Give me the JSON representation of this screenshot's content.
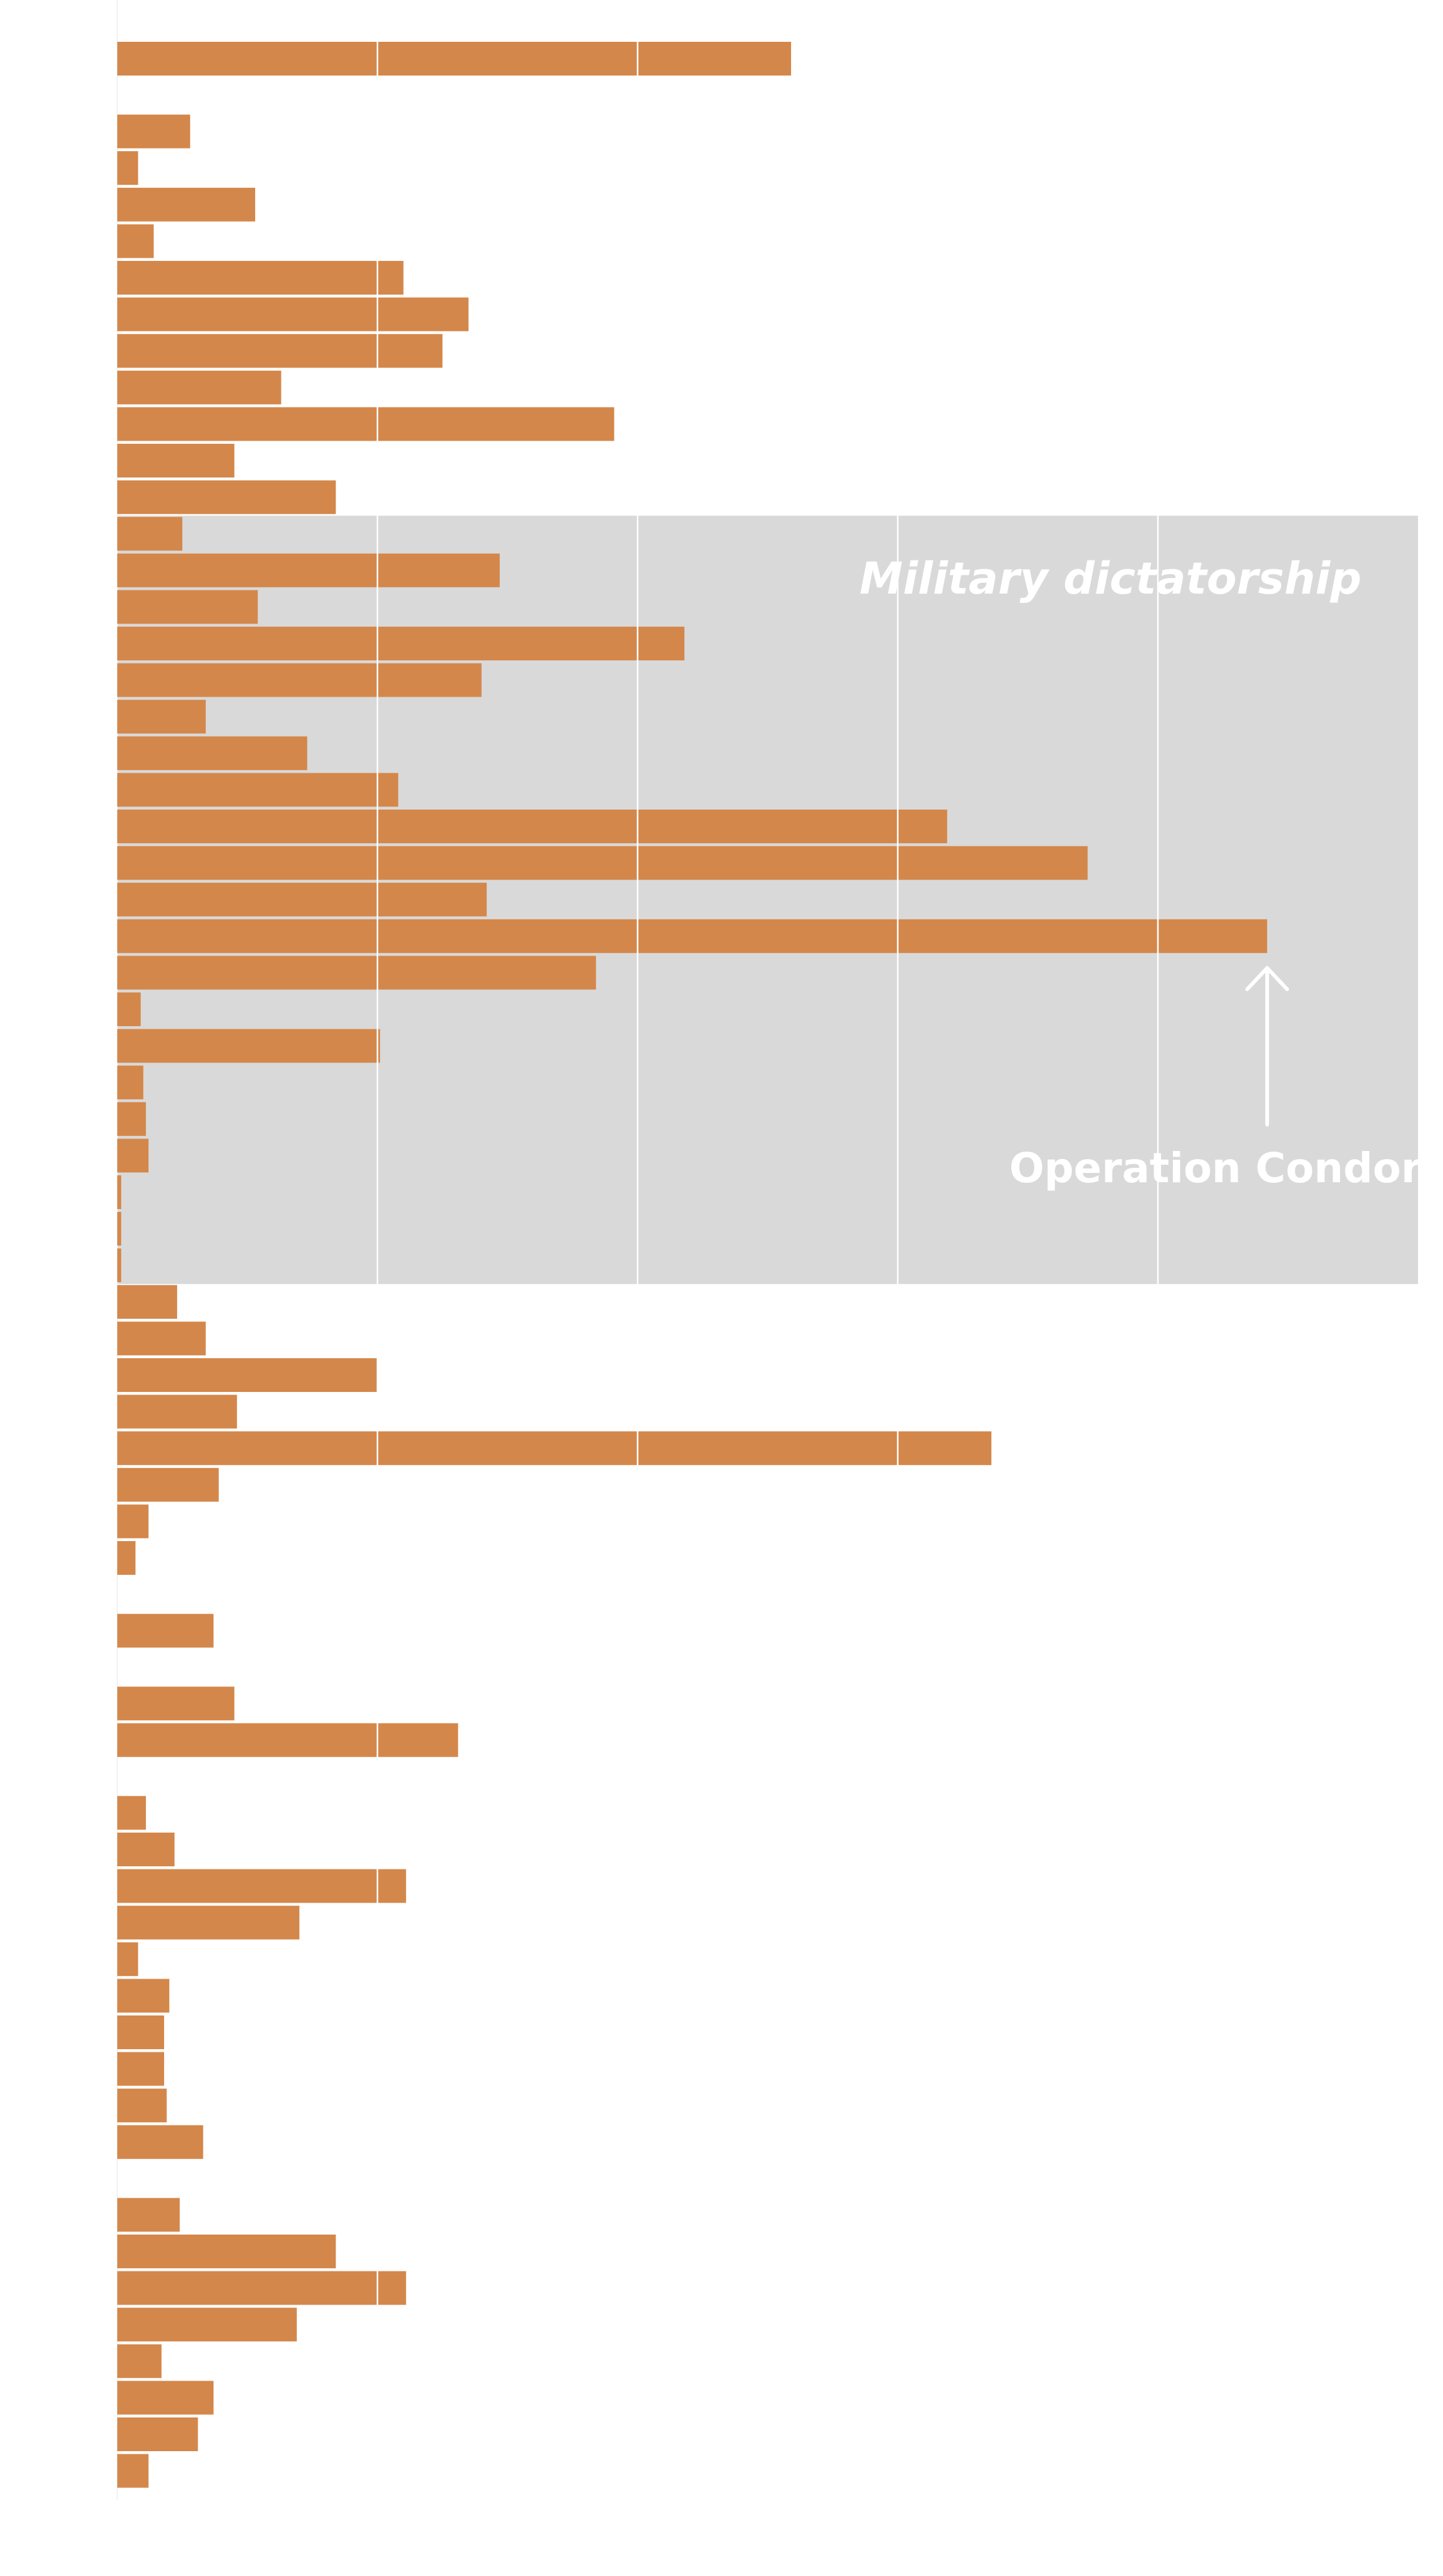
{
  "chart_data": {
    "type": "bar",
    "orientation": "horizontal",
    "bar_color": "#d4874a",
    "band_color": "#d9d9d9",
    "xlim": [
      0,
      500
    ],
    "gridlines": [
      100,
      200,
      300,
      400
    ],
    "values": [
      259,
      28,
      8,
      53,
      14,
      110,
      135,
      125,
      63,
      191,
      45,
      84,
      25,
      147,
      54,
      218,
      140,
      34,
      73,
      108,
      319,
      373,
      142,
      442,
      184,
      9,
      101,
      10,
      11,
      12,
      1.5,
      1.5,
      1.5,
      23,
      34,
      100,
      46,
      336,
      39,
      12,
      7,
      37,
      45,
      131,
      11,
      22,
      111,
      70,
      8,
      20,
      18,
      18,
      19,
      33,
      24,
      84,
      111,
      69,
      17,
      37,
      31,
      12
    ],
    "group_breaks_before": [
      1,
      41,
      42,
      44,
      54
    ],
    "highlight_band": {
      "start_index": 12,
      "end_index": 32,
      "label": "Military dictatorship"
    },
    "annotation": {
      "index": 23,
      "label": "Operation Condor"
    }
  }
}
